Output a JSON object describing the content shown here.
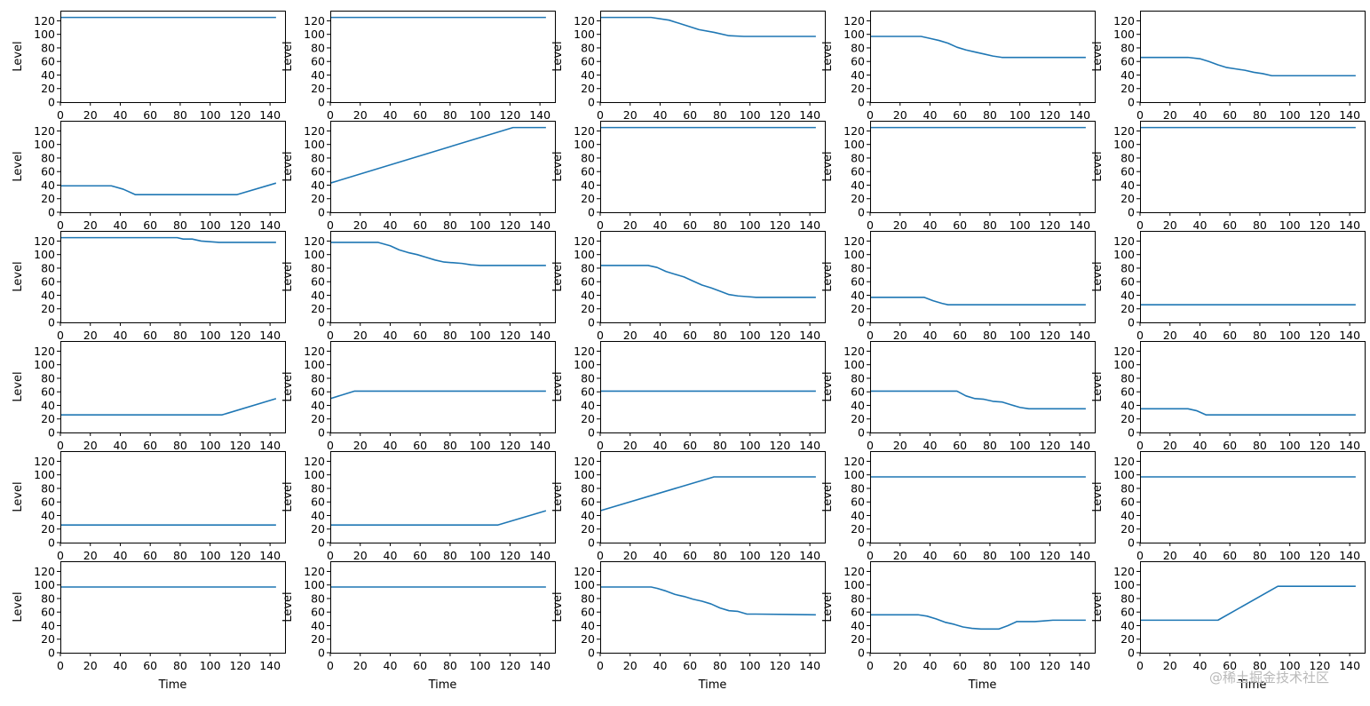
{
  "watermark": "@稀土掘金技术社区",
  "colors": {
    "line": "#1f77b4",
    "axes": "#000000",
    "background": "#ffffff"
  },
  "grid": {
    "rows": 6,
    "cols": 5
  },
  "chart_data": [
    {
      "type": "line",
      "ylabel": "Level",
      "xlabel": "",
      "xlim": [
        0,
        150
      ],
      "ylim": [
        0,
        135
      ],
      "x": [
        0,
        144
      ],
      "y": [
        125,
        125
      ]
    },
    {
      "type": "line",
      "ylabel": "Level",
      "xlabel": "",
      "xlim": [
        0,
        150
      ],
      "ylim": [
        0,
        135
      ],
      "x": [
        0,
        144
      ],
      "y": [
        125,
        125
      ]
    },
    {
      "type": "line",
      "ylabel": "Level",
      "xlabel": "",
      "xlim": [
        0,
        150
      ],
      "ylim": [
        0,
        135
      ],
      "x": [
        0,
        34,
        46,
        56,
        66,
        76,
        86,
        96,
        106,
        144
      ],
      "y": [
        125,
        125,
        121,
        114,
        107,
        103,
        98,
        97,
        97,
        97
      ]
    },
    {
      "type": "line",
      "ylabel": "Level",
      "xlabel": "",
      "xlim": [
        0,
        150
      ],
      "ylim": [
        0,
        135
      ],
      "x": [
        0,
        34,
        40,
        46,
        52,
        58,
        64,
        70,
        76,
        82,
        88,
        92,
        100,
        144
      ],
      "y": [
        97,
        97,
        94,
        91,
        87,
        81,
        77,
        74,
        71,
        68,
        66,
        66,
        66,
        66
      ]
    },
    {
      "type": "line",
      "ylabel": "Level",
      "xlabel": "",
      "xlim": [
        0,
        150
      ],
      "ylim": [
        0,
        135
      ],
      "x": [
        0,
        32,
        40,
        46,
        52,
        58,
        64,
        70,
        76,
        82,
        88,
        92,
        144
      ],
      "y": [
        66,
        66,
        64,
        60,
        55,
        51,
        49,
        47,
        44,
        42,
        39,
        39,
        39
      ]
    },
    {
      "type": "line",
      "ylabel": "Level",
      "xlabel": "",
      "xlim": [
        0,
        150
      ],
      "ylim": [
        0,
        135
      ],
      "x": [
        0,
        34,
        42,
        50,
        60,
        80,
        100,
        118,
        144
      ],
      "y": [
        39,
        39,
        34,
        26,
        26,
        26,
        26,
        26,
        43
      ]
    },
    {
      "type": "line",
      "ylabel": "Level",
      "xlabel": "",
      "xlim": [
        0,
        150
      ],
      "ylim": [
        0,
        135
      ],
      "x": [
        0,
        122,
        144
      ],
      "y": [
        43,
        125,
        125
      ]
    },
    {
      "type": "line",
      "ylabel": "Level",
      "xlabel": "",
      "xlim": [
        0,
        150
      ],
      "ylim": [
        0,
        135
      ],
      "x": [
        0,
        144
      ],
      "y": [
        125,
        125
      ]
    },
    {
      "type": "line",
      "ylabel": "Level",
      "xlabel": "",
      "xlim": [
        0,
        150
      ],
      "ylim": [
        0,
        135
      ],
      "x": [
        0,
        144
      ],
      "y": [
        125,
        125
      ]
    },
    {
      "type": "line",
      "ylabel": "Level",
      "xlabel": "",
      "xlim": [
        0,
        150
      ],
      "ylim": [
        0,
        135
      ],
      "x": [
        0,
        144
      ],
      "y": [
        125,
        125
      ]
    },
    {
      "type": "line",
      "ylabel": "Level",
      "xlabel": "",
      "xlim": [
        0,
        150
      ],
      "ylim": [
        0,
        135
      ],
      "x": [
        0,
        78,
        82,
        88,
        94,
        100,
        106,
        144
      ],
      "y": [
        125,
        125,
        123,
        123,
        120,
        119,
        118,
        118
      ]
    },
    {
      "type": "line",
      "ylabel": "Level",
      "xlabel": "",
      "xlim": [
        0,
        150
      ],
      "ylim": [
        0,
        135
      ],
      "x": [
        0,
        32,
        40,
        46,
        52,
        58,
        64,
        70,
        76,
        82,
        88,
        94,
        100,
        144
      ],
      "y": [
        118,
        118,
        113,
        107,
        103,
        100,
        96,
        92,
        89,
        88,
        87,
        85,
        84,
        84
      ]
    },
    {
      "type": "line",
      "ylabel": "Level",
      "xlabel": "",
      "xlim": [
        0,
        150
      ],
      "ylim": [
        0,
        135
      ],
      "x": [
        0,
        32,
        38,
        44,
        50,
        56,
        62,
        68,
        74,
        80,
        86,
        92,
        98,
        104,
        144
      ],
      "y": [
        84,
        84,
        81,
        75,
        71,
        67,
        61,
        55,
        51,
        46,
        41,
        39,
        38,
        37,
        37
      ]
    },
    {
      "type": "line",
      "ylabel": "Level",
      "xlabel": "",
      "xlim": [
        0,
        150
      ],
      "ylim": [
        0,
        135
      ],
      "x": [
        0,
        36,
        42,
        48,
        52,
        144
      ],
      "y": [
        37,
        37,
        32,
        28,
        26,
        26
      ]
    },
    {
      "type": "line",
      "ylabel": "Level",
      "xlabel": "",
      "xlim": [
        0,
        150
      ],
      "ylim": [
        0,
        135
      ],
      "x": [
        0,
        144
      ],
      "y": [
        26,
        26
      ]
    },
    {
      "type": "line",
      "ylabel": "Level",
      "xlabel": "",
      "xlim": [
        0,
        150
      ],
      "ylim": [
        0,
        135
      ],
      "x": [
        0,
        108,
        144
      ],
      "y": [
        26,
        26,
        50
      ]
    },
    {
      "type": "line",
      "ylabel": "Level",
      "xlabel": "",
      "xlim": [
        0,
        150
      ],
      "ylim": [
        0,
        135
      ],
      "x": [
        0,
        16,
        144
      ],
      "y": [
        50,
        61,
        61
      ]
    },
    {
      "type": "line",
      "ylabel": "Level",
      "xlabel": "",
      "xlim": [
        0,
        150
      ],
      "ylim": [
        0,
        135
      ],
      "x": [
        0,
        144
      ],
      "y": [
        61,
        61
      ]
    },
    {
      "type": "line",
      "ylabel": "Level",
      "xlabel": "",
      "xlim": [
        0,
        150
      ],
      "ylim": [
        0,
        135
      ],
      "x": [
        0,
        58,
        64,
        70,
        76,
        82,
        88,
        94,
        100,
        106,
        144
      ],
      "y": [
        61,
        61,
        54,
        50,
        49,
        46,
        45,
        41,
        37,
        35,
        35
      ]
    },
    {
      "type": "line",
      "ylabel": "Level",
      "xlabel": "",
      "xlim": [
        0,
        150
      ],
      "ylim": [
        0,
        135
      ],
      "x": [
        0,
        32,
        38,
        44,
        144
      ],
      "y": [
        35,
        35,
        32,
        26,
        26
      ]
    },
    {
      "type": "line",
      "ylabel": "Level",
      "xlabel": "",
      "xlim": [
        0,
        150
      ],
      "ylim": [
        0,
        135
      ],
      "x": [
        0,
        144
      ],
      "y": [
        26,
        26
      ]
    },
    {
      "type": "line",
      "ylabel": "Level",
      "xlabel": "",
      "xlim": [
        0,
        150
      ],
      "ylim": [
        0,
        135
      ],
      "x": [
        0,
        112,
        144
      ],
      "y": [
        26,
        26,
        47
      ]
    },
    {
      "type": "line",
      "ylabel": "Level",
      "xlabel": "",
      "xlim": [
        0,
        150
      ],
      "ylim": [
        0,
        135
      ],
      "x": [
        0,
        76,
        106,
        144
      ],
      "y": [
        47,
        97,
        97,
        97
      ]
    },
    {
      "type": "line",
      "ylabel": "Level",
      "xlabel": "",
      "xlim": [
        0,
        150
      ],
      "ylim": [
        0,
        135
      ],
      "x": [
        0,
        144
      ],
      "y": [
        97,
        97
      ]
    },
    {
      "type": "line",
      "ylabel": "Level",
      "xlabel": "",
      "xlim": [
        0,
        150
      ],
      "ylim": [
        0,
        135
      ],
      "x": [
        0,
        144
      ],
      "y": [
        97,
        97
      ]
    },
    {
      "type": "line",
      "ylabel": "Level",
      "xlabel": "Time",
      "xlim": [
        0,
        150
      ],
      "ylim": [
        0,
        135
      ],
      "x": [
        0,
        144
      ],
      "y": [
        97,
        97
      ]
    },
    {
      "type": "line",
      "ylabel": "Level",
      "xlabel": "Time",
      "xlim": [
        0,
        150
      ],
      "ylim": [
        0,
        135
      ],
      "x": [
        0,
        144
      ],
      "y": [
        97,
        97
      ]
    },
    {
      "type": "line",
      "ylabel": "Level",
      "xlabel": "Time",
      "xlim": [
        0,
        150
      ],
      "ylim": [
        0,
        135
      ],
      "x": [
        0,
        34,
        38,
        44,
        50,
        56,
        62,
        68,
        74,
        80,
        86,
        92,
        98,
        104,
        144
      ],
      "y": [
        97,
        97,
        95,
        91,
        86,
        83,
        79,
        76,
        72,
        66,
        62,
        61,
        57,
        57,
        56
      ]
    },
    {
      "type": "line",
      "ylabel": "Level",
      "xlabel": "Time",
      "xlim": [
        0,
        150
      ],
      "ylim": [
        0,
        135
      ],
      "x": [
        0,
        32,
        38,
        44,
        50,
        56,
        62,
        68,
        74,
        80,
        86,
        92,
        98,
        104,
        110,
        116,
        122,
        144
      ],
      "y": [
        56,
        56,
        54,
        50,
        45,
        42,
        38,
        36,
        35,
        35,
        35,
        40,
        46,
        46,
        46,
        47,
        48,
        48
      ]
    },
    {
      "type": "line",
      "ylabel": "Level",
      "xlabel": "Time",
      "xlim": [
        0,
        150
      ],
      "ylim": [
        0,
        135
      ],
      "x": [
        0,
        52,
        92,
        144
      ],
      "y": [
        48,
        48,
        98,
        98
      ]
    }
  ]
}
